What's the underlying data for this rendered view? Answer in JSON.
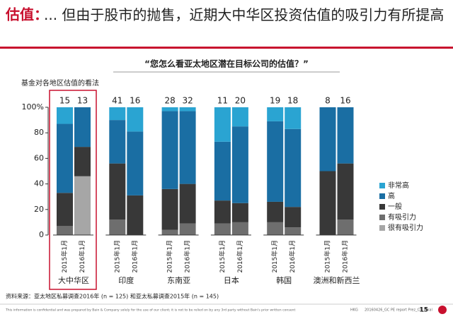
{
  "header": {
    "title_prefix": "估值：",
    "title": "... 但由于股市的抛售，近期大中华区投资估值的吸引力有所提高"
  },
  "chart_data": {
    "type": "stacked-bar",
    "title": "“您怎么看亚太地区潜在目标公司的估值？”",
    "y_label": "基金对各地区估值的看法",
    "groups": [
      "大中华区",
      "印度",
      "东南亚",
      "日本",
      "韩国",
      "澳洲和新西兰"
    ],
    "categories": [
      "2015年1月",
      "2016年1月",
      "2015年1月",
      "2016年1月",
      "2015年1月",
      "2016年1月",
      "2015年1月",
      "2016年1月",
      "2015年1月",
      "2016年1月",
      "2015年1月",
      "2016年1月"
    ],
    "counts": [
      15,
      13,
      41,
      16,
      28,
      32,
      11,
      20,
      19,
      18,
      8,
      16
    ],
    "series": [
      {
        "name": "很有吸引力",
        "color": "#a6a6a6",
        "values": [
          0,
          46,
          0,
          0,
          0,
          0,
          0,
          0,
          0,
          0,
          0,
          0
        ]
      },
      {
        "name": "有吸引力",
        "color": "#6e6e6e",
        "values": [
          7,
          0,
          12,
          0,
          4,
          9,
          9,
          10,
          10,
          6,
          0,
          12
        ]
      },
      {
        "name": "一般",
        "color": "#383838",
        "values": [
          26,
          23,
          44,
          31,
          32,
          31,
          18,
          15,
          16,
          16,
          50,
          44
        ]
      },
      {
        "name": "高",
        "color": "#1a6ea3",
        "values": [
          54,
          31,
          34,
          50,
          61,
          57,
          46,
          60,
          63,
          61,
          50,
          44
        ]
      },
      {
        "name": "非常高",
        "color": "#2aa4d2",
        "values": [
          13,
          0,
          10,
          19,
          3,
          3,
          27,
          15,
          11,
          17,
          0,
          0
        ]
      }
    ],
    "ylim": [
      0,
      100
    ],
    "yticks": [
      0,
      20,
      40,
      60,
      80,
      {
        "value": 100,
        "label": "100%"
      }
    ],
    "source": "资料来源：亚太地区私募调查2016年 (n = 125) 和亚太私募调查2015年 (n = 145)"
  },
  "footer": {
    "disclaimer": "This information is confidential and was prepared by Bain & Company solely for the use of our client; it is not to be relied on by any 3rd party without Bain's prior written consent",
    "office": "HKG",
    "file": "20160426_GC PE report Prez_CN_Final",
    "page": "15"
  }
}
